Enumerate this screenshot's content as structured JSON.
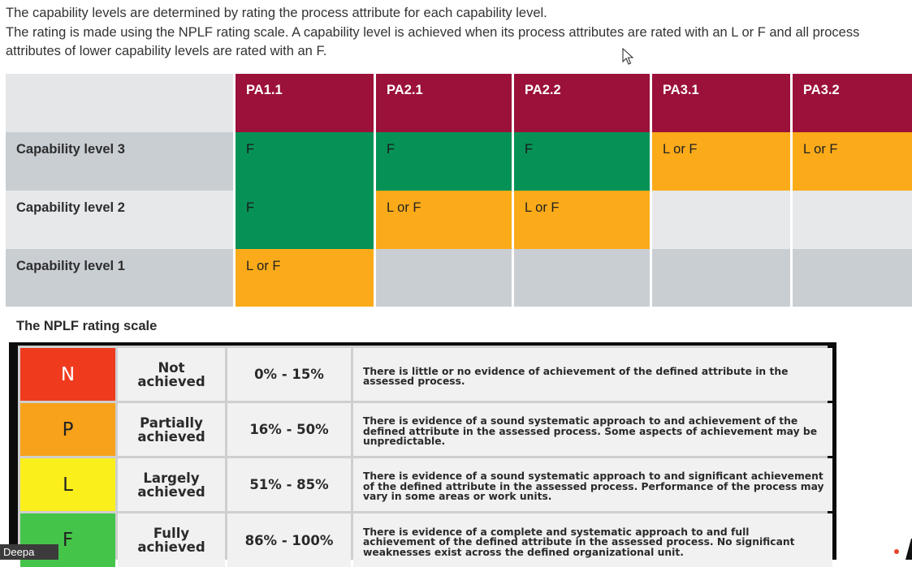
{
  "intro": {
    "line1": "The capability levels are determined by rating the process attribute for each capability level.",
    "line2": "The rating is made using the NPLF rating scale. A capability level is achieved when its process attributes are rated with an L or F and all process attributes of lower capability levels are rated with an F."
  },
  "capability_table": {
    "columns": [
      "PA1.1",
      "PA2.1",
      "PA2.2",
      "PA3.1",
      "PA3.2"
    ],
    "rows": [
      {
        "label": "Capability level 3",
        "cells": [
          "F",
          "F",
          "F",
          "L or F",
          "L or F"
        ]
      },
      {
        "label": "Capability level 2",
        "cells": [
          "F",
          "L or F",
          "L or F",
          "",
          ""
        ]
      },
      {
        "label": "Capability level 1",
        "cells": [
          "L or F",
          "",
          "",
          "",
          ""
        ]
      }
    ]
  },
  "nplf": {
    "title": "The NPLF rating scale",
    "rows": [
      {
        "letter": "N",
        "label_1": "Not",
        "label_2": "achieved",
        "range": "0% - 15%",
        "description": "There is little or no evidence of achievement of the defined attribute in the assessed process.",
        "color": "#f03a1e"
      },
      {
        "letter": "P",
        "label_1": "Partially",
        "label_2": "achieved",
        "range": "16% - 50%",
        "description": "There is evidence of a sound systematic approach to and achievement of the defined attribute in the assessed process. Some aspects of achievement may be unpredictable.",
        "color": "#f7a21a"
      },
      {
        "letter": "L",
        "label_1": "Largely",
        "label_2": "achieved",
        "range": "51% - 85%",
        "description": "There is evidence of a sound systematic approach to and significant achievement of the defined attribute in the assessed process. Performance of the process may vary in some areas or work units.",
        "color": "#fbef1b"
      },
      {
        "letter": "F",
        "label_1": "Fully",
        "label_2": "achieved",
        "range": "86% - 100%",
        "description": "There is evidence of a complete and systematic approach to and full achievement of the defined attribute in the assessed process. No significant weaknesses exist across the defined organizational unit.",
        "color": "#45c44a"
      }
    ]
  },
  "participant": {
    "name": "Deepa"
  },
  "colors": {
    "header": "#9b1139",
    "green": "#069257",
    "orange": "#fbab19"
  }
}
